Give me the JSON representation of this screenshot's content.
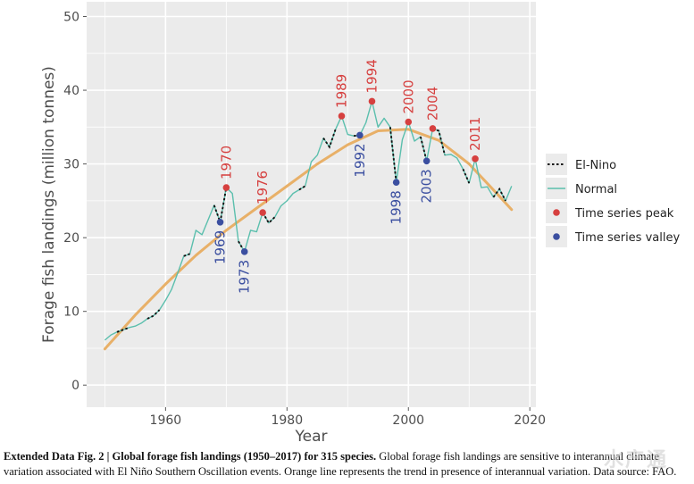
{
  "chart_data": {
    "type": "line",
    "xlabel": "Year",
    "ylabel": "Forage fish landings (million tonnes)",
    "xlim": [
      1947,
      2021
    ],
    "ylim": [
      -3,
      52
    ],
    "x_ticks": [
      1960,
      1980,
      2000,
      2020
    ],
    "y_ticks": [
      0,
      10,
      20,
      30,
      40,
      50
    ],
    "grid": true,
    "legend_position": "right",
    "legend": [
      {
        "label": "El-Nino",
        "style": "dotted-line",
        "color": "#111111"
      },
      {
        "label": "Normal",
        "style": "solid-line",
        "color": "#5bbfad"
      },
      {
        "label": "Time series peak",
        "style": "point",
        "color": "#d6403f"
      },
      {
        "label": "Time series valley",
        "style": "point",
        "color": "#3b4fa0"
      }
    ],
    "colors": {
      "panel": "#ebebeb",
      "grid": "#ffffff",
      "normal": "#5bbfad",
      "elnino": "#111111",
      "trend": "#e8b068",
      "peak": "#d6403f",
      "valley": "#3b4fa0"
    },
    "series": [
      {
        "name": "Landings",
        "points": [
          [
            1950,
            6.1
          ],
          [
            1951,
            6.8
          ],
          [
            1952,
            7.2
          ],
          [
            1953,
            7.5
          ],
          [
            1954,
            7.8
          ],
          [
            1955,
            8.0
          ],
          [
            1956,
            8.4
          ],
          [
            1957,
            9.0
          ],
          [
            1958,
            9.4
          ],
          [
            1959,
            10.2
          ],
          [
            1960,
            11.5
          ],
          [
            1961,
            13.0
          ],
          [
            1962,
            15.2
          ],
          [
            1963,
            17.5
          ],
          [
            1964,
            17.8
          ],
          [
            1965,
            21.0
          ],
          [
            1966,
            20.4
          ],
          [
            1967,
            22.4
          ],
          [
            1968,
            24.4
          ],
          [
            1969,
            22.1
          ],
          [
            1970,
            26.8
          ],
          [
            1971,
            26.0
          ],
          [
            1972,
            19.5
          ],
          [
            1973,
            18.1
          ],
          [
            1974,
            21.0
          ],
          [
            1975,
            20.8
          ],
          [
            1976,
            23.4
          ],
          [
            1977,
            22.0
          ],
          [
            1978,
            22.8
          ],
          [
            1979,
            24.3
          ],
          [
            1980,
            25.0
          ],
          [
            1981,
            26.0
          ],
          [
            1982,
            26.5
          ],
          [
            1983,
            27.0
          ],
          [
            1984,
            30.3
          ],
          [
            1985,
            31.2
          ],
          [
            1986,
            33.5
          ],
          [
            1987,
            32.3
          ],
          [
            1988,
            34.7
          ],
          [
            1989,
            36.5
          ],
          [
            1990,
            34.0
          ],
          [
            1991,
            33.8
          ],
          [
            1992,
            33.9
          ],
          [
            1993,
            35.6
          ],
          [
            1994,
            38.5
          ],
          [
            1995,
            35.0
          ],
          [
            1996,
            36.2
          ],
          [
            1997,
            35.0
          ],
          [
            1998,
            27.5
          ],
          [
            1999,
            33.3
          ],
          [
            2000,
            35.7
          ],
          [
            2001,
            33.1
          ],
          [
            2002,
            33.7
          ],
          [
            2003,
            30.4
          ],
          [
            2004,
            34.8
          ],
          [
            2005,
            34.5
          ],
          [
            2006,
            31.2
          ],
          [
            2007,
            31.3
          ],
          [
            2008,
            30.8
          ],
          [
            2009,
            29.3
          ],
          [
            2010,
            27.4
          ],
          [
            2011,
            30.7
          ],
          [
            2012,
            26.8
          ],
          [
            2013,
            26.9
          ],
          [
            2014,
            25.5
          ],
          [
            2015,
            26.6
          ],
          [
            2016,
            25.0
          ],
          [
            2017,
            27.0
          ]
        ],
        "elnino_segments": [
          [
            1952,
            1954
          ],
          [
            1957,
            1959
          ],
          [
            1963,
            1964
          ],
          [
            1968,
            1970
          ],
          [
            1972,
            1973
          ],
          [
            1976,
            1978
          ],
          [
            1982,
            1983
          ],
          [
            1986,
            1988
          ],
          [
            1991,
            1992
          ],
          [
            1997,
            1998
          ],
          [
            2002,
            2003
          ],
          [
            2004,
            2006
          ],
          [
            2009,
            2010
          ],
          [
            2014,
            2016
          ]
        ]
      },
      {
        "name": "Trend",
        "points": [
          [
            1950,
            4.9
          ],
          [
            1955,
            9.5
          ],
          [
            1960,
            13.7
          ],
          [
            1965,
            17.6
          ],
          [
            1970,
            21.0
          ],
          [
            1975,
            24.0
          ],
          [
            1980,
            27.0
          ],
          [
            1985,
            30.0
          ],
          [
            1990,
            32.6
          ],
          [
            1995,
            34.5
          ],
          [
            2000,
            34.7
          ],
          [
            2005,
            33.2
          ],
          [
            2010,
            30.0
          ],
          [
            2015,
            25.6
          ],
          [
            2017,
            23.8
          ]
        ]
      }
    ],
    "peaks": [
      {
        "year": "1970",
        "value": 26.8
      },
      {
        "year": "1976",
        "value": 23.4
      },
      {
        "year": "1989",
        "value": 36.5
      },
      {
        "year": "1994",
        "value": 38.5
      },
      {
        "year": "2000",
        "value": 35.7
      },
      {
        "year": "2004",
        "value": 34.8
      },
      {
        "year": "2011",
        "value": 30.7
      }
    ],
    "valleys": [
      {
        "year": "1969",
        "value": 22.1
      },
      {
        "year": "1973",
        "value": 18.1
      },
      {
        "year": "1992",
        "value": 33.9
      },
      {
        "year": "1998",
        "value": 27.5
      },
      {
        "year": "2003",
        "value": 30.4
      }
    ]
  },
  "caption": {
    "bold": "Extended Data Fig. 2 | Global forage fish landings (1950–2017) for 315 species.",
    "text": " Global forage fish landings are sensitive to interannual climate variation associated with El Niño Southern Oscillation events. Orange line represents the trend in presence of interannual variation. Data source: FAO."
  },
  "watermark": "水产通"
}
